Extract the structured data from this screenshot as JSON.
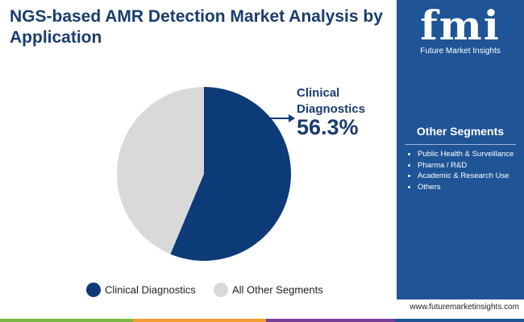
{
  "chart_data": {
    "type": "pie",
    "title": "NGS-based AMR Detection Market Analysis by Application",
    "categories": [
      "Clinical Diagnostics",
      "All Other Segments"
    ],
    "values": [
      56.3,
      43.7
    ],
    "value_labels": [
      "56.3%",
      null
    ],
    "colors": [
      "#0d3b78",
      "#d9d9d9"
    ],
    "legend": "bottom"
  },
  "sidebar": {
    "title": "Other Segments",
    "items": [
      "Public Health & Surveillance",
      "Pharma / R&D",
      "Academic & Research Use",
      "Others"
    ]
  },
  "brand": {
    "logo": "fmi",
    "name": "Future Market Insights",
    "website": "www.futuremarketinsights.com"
  }
}
